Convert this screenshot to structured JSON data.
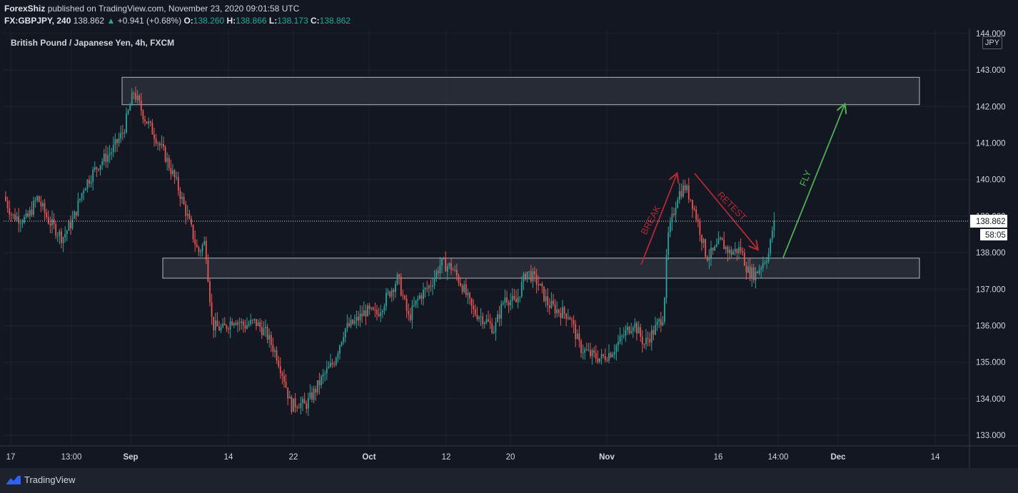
{
  "header": {
    "author": "ForexShiz",
    "published_text": " published on TradingView.com, November 23, 2020 09:01:58 UTC",
    "symbol": "FX:GBPJPY, 240",
    "last": "138.862",
    "change": "+0.941 (+0.68%)",
    "o_label": "O:",
    "o_value": "138.260",
    "h_label": "H:",
    "h_value": "138.866",
    "l_label": "L:",
    "l_value": "138.173",
    "c_label": "C:",
    "c_value": "138.862"
  },
  "footer": {
    "brand": "TradingView"
  },
  "colors": {
    "background": "#131722",
    "up": "#26a69a",
    "down": "#ef5350",
    "annotation_red": "#b22833",
    "annotation_green": "#4caf50",
    "zone_fill": "#2a2e39",
    "zone_border": "#b2b5be"
  },
  "icons": {
    "footer_logo": "tradingview-logo-icon"
  },
  "chart_data": {
    "type": "candlestick",
    "title": "British Pound / Japanese Yen, 4h, FXCM",
    "currency": "JPY",
    "ylim": [
      132.8,
      144.2
    ],
    "y_ticks": [
      "133.000",
      "134.000",
      "135.000",
      "136.000",
      "137.000",
      "138.000",
      "139.000",
      "140.000",
      "141.000",
      "142.000",
      "143.000",
      "144.000"
    ],
    "x_ticks": [
      "17",
      "13:00",
      "Sep",
      "14",
      "22",
      "Oct",
      "12",
      "20",
      "Nov",
      "16",
      "14:00",
      "Dec",
      "14"
    ],
    "last_price": "138.862",
    "countdown": "58:05",
    "path_points": [
      [
        0,
        139.9
      ],
      [
        20,
        139.0
      ],
      [
        40,
        138.9
      ],
      [
        55,
        139.5
      ],
      [
        70,
        138.9
      ],
      [
        90,
        138.4
      ],
      [
        105,
        138.9
      ],
      [
        120,
        139.8
      ],
      [
        140,
        140.4
      ],
      [
        160,
        140.8
      ],
      [
        175,
        141.3
      ],
      [
        190,
        142.4
      ],
      [
        205,
        141.7
      ],
      [
        220,
        141.2
      ],
      [
        235,
        140.6
      ],
      [
        250,
        139.9
      ],
      [
        265,
        139.0
      ],
      [
        280,
        138.0
      ],
      [
        290,
        138.3
      ],
      [
        300,
        136.0
      ],
      [
        315,
        135.9
      ],
      [
        330,
        136.2
      ],
      [
        345,
        136.0
      ],
      [
        360,
        136.1
      ],
      [
        375,
        135.8
      ],
      [
        390,
        135.2
      ],
      [
        400,
        134.6
      ],
      [
        410,
        133.8
      ],
      [
        420,
        133.9
      ],
      [
        430,
        133.8
      ],
      [
        440,
        134.1
      ],
      [
        455,
        134.6
      ],
      [
        470,
        135.0
      ],
      [
        485,
        135.9
      ],
      [
        500,
        136.1
      ],
      [
        515,
        136.4
      ],
      [
        530,
        136.3
      ],
      [
        545,
        136.8
      ],
      [
        560,
        137.3
      ],
      [
        575,
        136.2
      ],
      [
        590,
        136.8
      ],
      [
        605,
        137.1
      ],
      [
        620,
        137.7
      ],
      [
        635,
        137.6
      ],
      [
        650,
        137.1
      ],
      [
        665,
        136.4
      ],
      [
        680,
        136.2
      ],
      [
        695,
        135.9
      ],
      [
        710,
        136.8
      ],
      [
        725,
        136.6
      ],
      [
        740,
        137.5
      ],
      [
        755,
        137.2
      ],
      [
        770,
        136.6
      ],
      [
        785,
        136.4
      ],
      [
        800,
        136.3
      ],
      [
        815,
        135.4
      ],
      [
        830,
        135.2
      ],
      [
        845,
        135.1
      ],
      [
        860,
        135.3
      ],
      [
        875,
        135.7
      ],
      [
        890,
        136.1
      ],
      [
        905,
        135.5
      ],
      [
        920,
        135.9
      ],
      [
        932,
        136.3
      ],
      [
        938,
        138.4
      ],
      [
        945,
        139.0
      ],
      [
        952,
        139.6
      ],
      [
        962,
        139.8
      ],
      [
        972,
        139.4
      ],
      [
        982,
        138.7
      ],
      [
        992,
        137.9
      ],
      [
        1002,
        138.0
      ],
      [
        1012,
        138.3
      ],
      [
        1025,
        138.0
      ],
      [
        1040,
        138.1
      ],
      [
        1050,
        137.5
      ],
      [
        1060,
        137.4
      ],
      [
        1070,
        137.7
      ],
      [
        1080,
        138.0
      ],
      [
        1086,
        138.86
      ]
    ],
    "zones": [
      {
        "from_x": "Sep",
        "to_x": "Dec+",
        "y_top": 142.8,
        "y_bottom": 142.05
      },
      {
        "from_x": "Sep+",
        "to_x": "Dec+",
        "y_top": 137.85,
        "y_bottom": 137.3
      }
    ],
    "annotations": [
      {
        "text": "BREAK",
        "color": "red"
      },
      {
        "text": "RETEST",
        "color": "red"
      },
      {
        "text": "FLY",
        "color": "green"
      }
    ]
  }
}
